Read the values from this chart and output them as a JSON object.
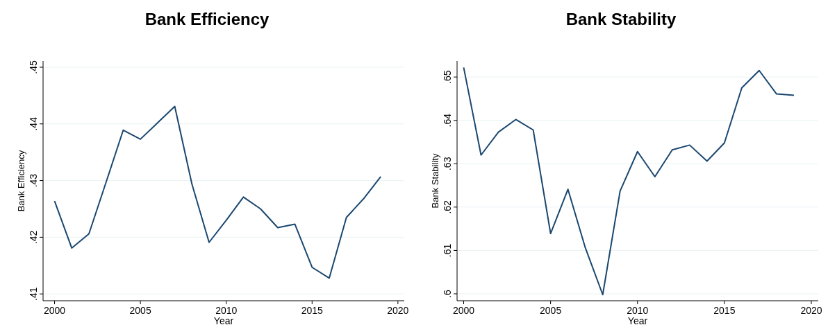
{
  "chart_data": [
    {
      "type": "line",
      "title": "Bank Efficiency",
      "xlabel": "Year",
      "ylabel": "Bank Efficiency",
      "x": [
        2000,
        2001,
        2002,
        2003,
        2004,
        2005,
        2006,
        2007,
        2008,
        2009,
        2010,
        2011,
        2012,
        2013,
        2014,
        2015,
        2016,
        2017,
        2018,
        2019
      ],
      "series": [
        {
          "color": "#1a476f",
          "values": [
            0.4264,
            0.4181,
            0.4206,
            0.4297,
            0.4389,
            0.4373,
            0.4402,
            0.4431,
            0.4294,
            0.4191,
            0.423,
            0.4271,
            0.425,
            0.4217,
            0.4223,
            0.4147,
            0.4128,
            0.4235,
            0.4268,
            0.4307
          ]
        }
      ],
      "xlim": [
        1999.33,
        2020.37
      ],
      "xticks": [
        2000,
        2005,
        2010,
        2015,
        2020
      ],
      "ylim": [
        0.4088,
        0.4511
      ],
      "yticks": [
        {
          "value": 0.41,
          "label": ".41"
        },
        {
          "value": 0.42,
          "label": ".42"
        },
        {
          "value": 0.43,
          "label": ".43"
        },
        {
          "value": 0.44,
          "label": ".44"
        },
        {
          "value": 0.45,
          "label": ".45"
        }
      ],
      "grid": "y"
    },
    {
      "type": "line",
      "title": "Bank Stability",
      "xlabel": "Year",
      "ylabel": "Bank Stability",
      "x": [
        2000,
        2001,
        2002,
        2003,
        2004,
        2005,
        2006,
        2007,
        2008,
        2009,
        2010,
        2011,
        2012,
        2013,
        2014,
        2015,
        2016,
        2017,
        2018,
        2019
      ],
      "series": [
        {
          "color": "#1a476f",
          "values": [
            0.6522,
            0.632,
            0.6373,
            0.6402,
            0.6378,
            0.6139,
            0.6241,
            0.6106,
            0.5998,
            0.6237,
            0.6328,
            0.627,
            0.6332,
            0.6343,
            0.6306,
            0.6348,
            0.6475,
            0.6515,
            0.6461,
            0.6458
          ]
        }
      ],
      "xlim": [
        1999.62,
        2020.4
      ],
      "xticks": [
        2000,
        2005,
        2010,
        2015,
        2020
      ],
      "ylim": [
        0.5984,
        0.6537
      ],
      "yticks": [
        {
          "value": 0.6,
          "label": ".6"
        },
        {
          "value": 0.61,
          "label": ".61"
        },
        {
          "value": 0.62,
          "label": ".62"
        },
        {
          "value": 0.63,
          "label": ".63"
        },
        {
          "value": 0.64,
          "label": ".64"
        },
        {
          "value": 0.65,
          "label": ".65"
        }
      ],
      "grid": "y"
    }
  ]
}
